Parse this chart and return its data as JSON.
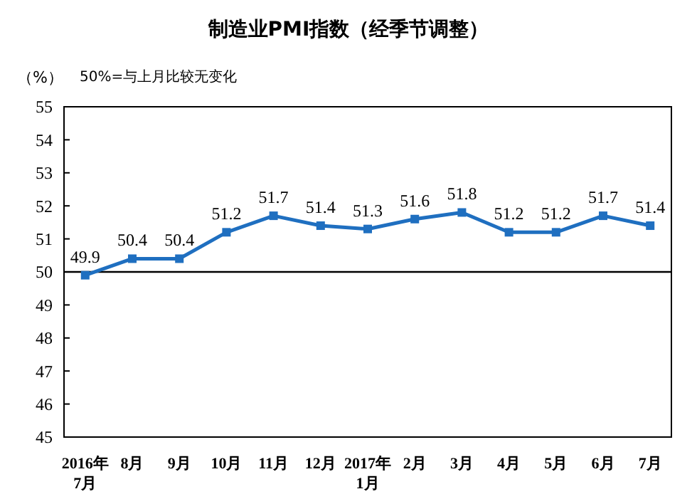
{
  "chart_data": {
    "type": "line",
    "title": "制造业PMI指数（经季节调整）",
    "ylabel": "（%）",
    "annotations": [
      "50%=与上月比较无变化"
    ],
    "categories": [
      "2016年\n7月",
      "8月",
      "9月",
      "10月",
      "11月",
      "12月",
      "2017年\n1月",
      "2月",
      "3月",
      "4月",
      "5月",
      "6月",
      "7月"
    ],
    "series": [
      {
        "color": "#1f6fc0",
        "values": [
          49.9,
          50.4,
          50.4,
          51.2,
          51.7,
          51.4,
          51.3,
          51.6,
          51.8,
          51.2,
          51.2,
          51.7,
          51.4
        ]
      }
    ],
    "ylim": [
      45,
      55
    ],
    "yticks": [
      45,
      46,
      47,
      48,
      49,
      50,
      51,
      52,
      53,
      54,
      55
    ],
    "ref_lines": [
      {
        "axis": "y",
        "value": 50,
        "color": "#000000"
      }
    ],
    "data_labels": true,
    "marker": "square",
    "line_style": "solid",
    "grid": false
  }
}
